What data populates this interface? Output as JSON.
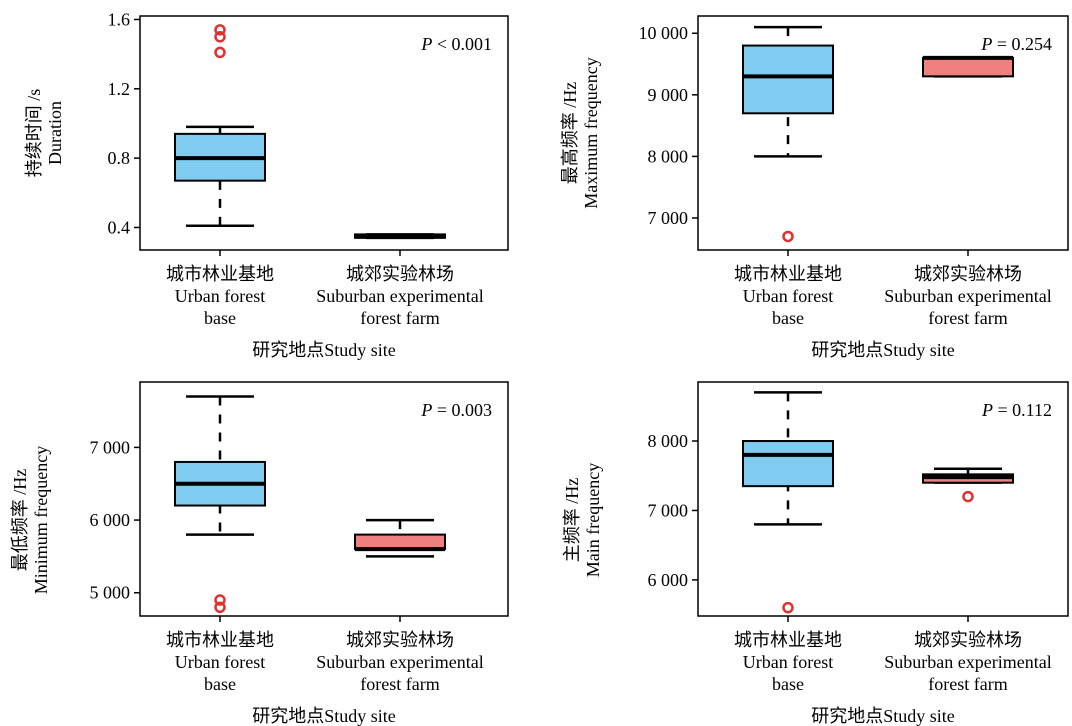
{
  "chart_data": [
    {
      "type": "box",
      "id": "duration",
      "ylabel_cn": "持续时间 /s",
      "ylabel_en": "Duration",
      "xlabel": "研究地点Study site",
      "p_label": "P",
      "p_rel": " < 0.001",
      "yticks": [
        "0.4",
        "0.8",
        "1.2",
        "1.6"
      ],
      "ytick_values": [
        0.4,
        0.8,
        1.2,
        1.6
      ],
      "ylim": [
        0.27,
        1.62
      ],
      "categories": [
        {
          "cn": "城市林业基地",
          "en1": "Urban forest",
          "en2": "base"
        },
        {
          "cn": "城郊实验林场",
          "en1": "Suburban experimental",
          "en2": "forest farm"
        }
      ],
      "boxes": [
        {
          "whisker_low": 0.41,
          "q1": 0.67,
          "median": 0.8,
          "q3": 0.94,
          "whisker_high": 0.98,
          "outliers": [
            1.41,
            1.5,
            1.54
          ],
          "color": "#80CCF0"
        },
        {
          "whisker_low": 0.34,
          "q1": 0.34,
          "median": 0.35,
          "q3": 0.36,
          "whisker_high": 0.36,
          "outliers": [],
          "color": "#F08080"
        }
      ]
    },
    {
      "type": "box",
      "id": "max-frequency",
      "ylabel_cn": "最高频率 /Hz",
      "ylabel_en": "Maximum frequency",
      "xlabel": "研究地点Study site",
      "p_label": "P",
      "p_rel": " = 0.254",
      "yticks": [
        "7 000",
        "8 000",
        "9 000",
        "10 000"
      ],
      "ytick_values": [
        7000,
        8000,
        9000,
        10000
      ],
      "ylim": [
        6480,
        10280
      ],
      "categories": [
        {
          "cn": "城市林业基地",
          "en1": "Urban forest",
          "en2": "base"
        },
        {
          "cn": "城郊实验林场",
          "en1": "Suburban experimental",
          "en2": "forest farm"
        }
      ],
      "boxes": [
        {
          "whisker_low": 8000,
          "q1": 8700,
          "median": 9300,
          "q3": 9800,
          "whisker_high": 10100,
          "outliers": [
            6700
          ],
          "color": "#80CCF0"
        },
        {
          "whisker_low": 9300,
          "q1": 9300,
          "median": 9600,
          "q3": 9600,
          "whisker_high": 9600,
          "outliers": [],
          "color": "#F08080"
        }
      ]
    },
    {
      "type": "box",
      "id": "min-frequency",
      "ylabel_cn": "最低频率 /Hz",
      "ylabel_en": "Minimum frequency",
      "xlabel": "研究地点Study site",
      "p_label": "P",
      "p_rel": " = 0.003",
      "yticks": [
        "5 000",
        "6 000",
        "7 000"
      ],
      "ytick_values": [
        5000,
        6000,
        7000
      ],
      "ylim": [
        4680,
        7900
      ],
      "categories": [
        {
          "cn": "城市林业基地",
          "en1": "Urban forest",
          "en2": "base"
        },
        {
          "cn": "城郊实验林场",
          "en1": "Suburban experimental",
          "en2": "forest farm"
        }
      ],
      "boxes": [
        {
          "whisker_low": 5800,
          "q1": 6200,
          "median": 6500,
          "q3": 6800,
          "whisker_high": 7700,
          "outliers": [
            4800,
            4900
          ],
          "color": "#80CCF0"
        },
        {
          "whisker_low": 5500,
          "q1": 5600,
          "median": 5600,
          "q3": 5800,
          "whisker_high": 6000,
          "outliers": [],
          "color": "#F08080"
        }
      ]
    },
    {
      "type": "box",
      "id": "main-frequency",
      "ylabel_cn": "主频率 /Hz",
      "ylabel_en": "Main frequency",
      "xlabel": "研究地点Study site",
      "p_label": "P",
      "p_rel": " = 0.112",
      "yticks": [
        "6 000",
        "7 000",
        "8 000"
      ],
      "ytick_values": [
        6000,
        7000,
        8000
      ],
      "ylim": [
        5480,
        8850
      ],
      "categories": [
        {
          "cn": "城市林业基地",
          "en1": "Urban forest",
          "en2": "base"
        },
        {
          "cn": "城郊实验林场",
          "en1": "Suburban experimental",
          "en2": "forest farm"
        }
      ],
      "boxes": [
        {
          "whisker_low": 6800,
          "q1": 7350,
          "median": 7800,
          "q3": 8000,
          "whisker_high": 8700,
          "outliers": [
            5600
          ],
          "color": "#80CCF0"
        },
        {
          "whisker_low": 7400,
          "q1": 7400,
          "median": 7480,
          "q3": 7520,
          "whisker_high": 7600,
          "outliers": [
            7200
          ],
          "color": "#F08080"
        }
      ]
    }
  ]
}
